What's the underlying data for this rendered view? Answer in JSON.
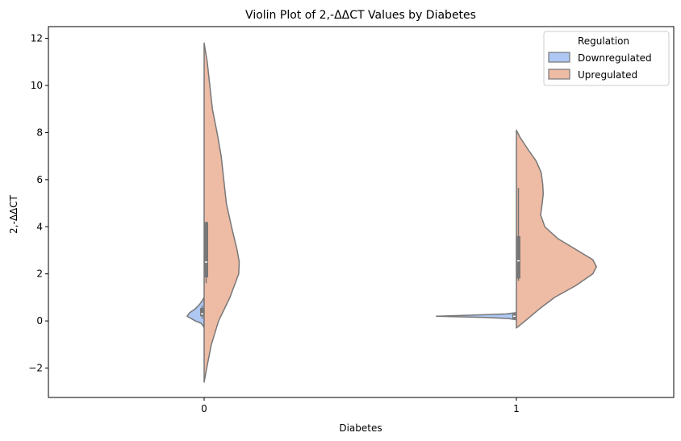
{
  "chart_data": {
    "type": "violin",
    "title": "Violin Plot of 2,-ΔΔCT Values by Diabetes",
    "xlabel": "Diabetes",
    "ylabel": "2,-ΔΔCT",
    "categories": [
      "0",
      "1"
    ],
    "ylim": [
      -3.25,
      12.5
    ],
    "yticks": [
      -2,
      0,
      2,
      4,
      6,
      8,
      10,
      12
    ],
    "ytick_labels": [
      "−2",
      "0",
      "2",
      "4",
      "6",
      "8",
      "10",
      "12"
    ],
    "legend": {
      "title": "Regulation",
      "placement": "top-right",
      "entries": [
        {
          "label": "Downregulated",
          "color": "#aec7f3"
        },
        {
          "label": "Upregulated",
          "color": "#eebba5"
        }
      ]
    },
    "outline_color": "#777777",
    "series": [
      {
        "name": "Downregulated",
        "side": "left",
        "color": "#aec7f3",
        "violins": [
          {
            "category": "0",
            "kde": [
              [
                -0.3,
                0.0
              ],
              [
                -0.2,
                2.0
              ],
              [
                -0.1,
                6.0
              ],
              [
                0.0,
                17.0
              ],
              [
                0.2,
                33.0
              ],
              [
                0.35,
                28.0
              ],
              [
                0.5,
                18.0
              ],
              [
                0.7,
                9.0
              ],
              [
                0.85,
                4.0
              ],
              [
                1.0,
                0.0
              ]
            ],
            "box": {
              "q1": 0.2,
              "median": 0.3,
              "q3": 0.55,
              "whisker_low": 0.1,
              "whisker_high": 0.65
            }
          },
          {
            "category": "1",
            "kde": [
              [
                0.05,
                0.0
              ],
              [
                0.1,
                15.0
              ],
              [
                0.15,
                60.0
              ],
              [
                0.2,
                155.0
              ],
              [
                0.25,
                80.0
              ],
              [
                0.3,
                20.0
              ],
              [
                0.35,
                0.0
              ]
            ],
            "box": {
              "q1": 0.1,
              "median": 0.2,
              "q3": 0.3,
              "whisker_low": 0.05,
              "whisker_high": 0.35
            }
          }
        ]
      },
      {
        "name": "Upregulated",
        "side": "right",
        "color": "#eebba5",
        "violins": [
          {
            "category": "0",
            "kde": [
              [
                -2.6,
                0.0
              ],
              [
                -2.0,
                5.0
              ],
              [
                -1.0,
                14.0
              ],
              [
                0.0,
                28.0
              ],
              [
                1.0,
                50.0
              ],
              [
                2.0,
                67.0
              ],
              [
                2.5,
                68.0
              ],
              [
                3.0,
                64.0
              ],
              [
                4.0,
                53.0
              ],
              [
                5.0,
                43.0
              ],
              [
                6.0,
                38.0
              ],
              [
                7.0,
                33.0
              ],
              [
                8.0,
                25.0
              ],
              [
                9.0,
                16.0
              ],
              [
                10.0,
                11.0
              ],
              [
                11.0,
                6.0
              ],
              [
                11.8,
                0.0
              ]
            ],
            "box": {
              "q1": 1.85,
              "median": 2.5,
              "q3": 4.2,
              "whisker_low": 1.6,
              "whisker_high": 4.2
            }
          },
          {
            "category": "1",
            "kde": [
              [
                -0.3,
                0.0
              ],
              [
                0.0,
                17.0
              ],
              [
                0.5,
                44.0
              ],
              [
                1.0,
                74.0
              ],
              [
                1.5,
                115.0
              ],
              [
                2.0,
                148.0
              ],
              [
                2.3,
                155.0
              ],
              [
                2.6,
                148.0
              ],
              [
                3.0,
                118.0
              ],
              [
                3.5,
                80.0
              ],
              [
                4.0,
                55.0
              ],
              [
                4.5,
                47.0
              ],
              [
                5.0,
                50.0
              ],
              [
                5.4,
                52.0
              ],
              [
                5.8,
                51.0
              ],
              [
                6.3,
                48.0
              ],
              [
                6.8,
                38.0
              ],
              [
                7.3,
                22.0
              ],
              [
                7.8,
                7.0
              ],
              [
                8.1,
                0.0
              ]
            ],
            "box": {
              "q1": 1.8,
              "median": 2.55,
              "q3": 3.6,
              "whisker_low": 1.7,
              "whisker_high": 5.65
            }
          }
        ]
      }
    ]
  }
}
